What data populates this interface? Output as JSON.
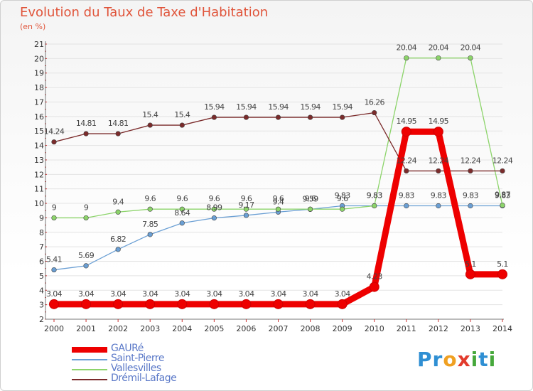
{
  "header": {
    "title": "Evolution du Taux de Taxe d'Habitation",
    "subtitle": "(en %)"
  },
  "logo": {
    "text": "Proxiti"
  },
  "chart_data": {
    "type": "line",
    "title": "Evolution du Taux de Taxe d'Habitation",
    "ylabel": "(en %)",
    "xlabel": "",
    "x": [
      2000,
      2001,
      2002,
      2003,
      2004,
      2005,
      2006,
      2007,
      2008,
      2009,
      2010,
      2011,
      2012,
      2013,
      2014
    ],
    "ylim": [
      2,
      21
    ],
    "yticks": [
      2,
      3,
      4,
      5,
      6,
      7,
      8,
      9,
      10,
      11,
      12,
      13,
      14,
      15,
      16,
      17,
      18,
      19,
      20,
      21
    ],
    "grid": "horizontal",
    "legend_position": "bottom-left",
    "series": [
      {
        "name": "GAURé",
        "color": "#ee0000",
        "values": [
          3.04,
          3.04,
          3.04,
          3.04,
          3.04,
          3.04,
          3.04,
          3.04,
          3.04,
          3.04,
          4.23,
          14.95,
          14.95,
          5.1,
          5.1
        ],
        "labels": [
          "3.04",
          "3.04",
          "3.04",
          "3.04",
          "3.04",
          "3.04",
          "3.04",
          "3.04",
          "3.04",
          "3.04",
          "4.23",
          "14.95",
          "14.95",
          "5.1",
          "5.1"
        ]
      },
      {
        "name": "Saint-Pierre",
        "color": "#6a9fd4",
        "values": [
          5.41,
          5.69,
          6.82,
          7.85,
          8.64,
          8.99,
          9.17,
          9.4,
          9.59,
          9.83,
          9.83,
          9.83,
          9.83,
          9.83,
          9.83
        ],
        "labels": [
          "5.41",
          "5.69",
          "6.82",
          "7.85",
          "8.64",
          "8.99",
          "9.17",
          "9.4",
          "9.59",
          "9.83",
          "9.83",
          "9.83",
          "9.83",
          "9.83",
          "9.83"
        ]
      },
      {
        "name": "Vallesvilles",
        "color": "#8cd46a",
        "values": [
          9,
          9,
          9.4,
          9.6,
          9.6,
          9.6,
          9.6,
          9.6,
          9.6,
          9.6,
          9.83,
          20.04,
          20.04,
          20.04,
          9.87
        ],
        "labels": [
          "9",
          "9",
          "9.4",
          "9.6",
          "9.6",
          "9.6",
          "9.6",
          "9.6",
          "9.6",
          "9.6",
          "9.83",
          "20.04",
          "20.04",
          "20.04",
          "9.87"
        ]
      },
      {
        "name": "Drémil-Lafage",
        "color": "#7b2b2b",
        "values": [
          14.24,
          14.81,
          14.81,
          15.4,
          15.4,
          15.94,
          15.94,
          15.94,
          15.94,
          15.94,
          16.26,
          12.24,
          12.24,
          12.24,
          12.24
        ],
        "labels": [
          "14.24",
          "14.81",
          "14.81",
          "15.4",
          "15.4",
          "15.94",
          "15.94",
          "15.94",
          "15.94",
          "15.94",
          "16.26",
          "12.24",
          "12.24",
          "12.24",
          "12.24"
        ]
      }
    ]
  }
}
